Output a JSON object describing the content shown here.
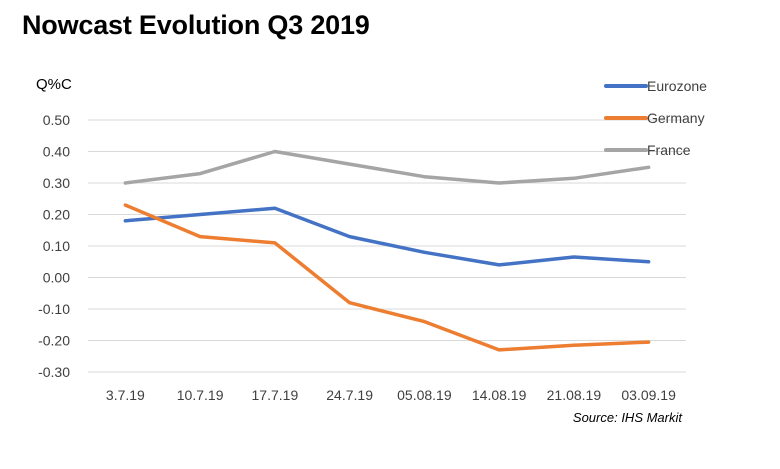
{
  "chart_data": {
    "type": "line",
    "title": "Nowcast Evolution Q3 2019",
    "ylabel": "Q%C",
    "xlabel": "",
    "source": "Source: IHS Markit",
    "categories": [
      "3.7.19",
      "10.7.19",
      "17.7.19",
      "24.7.19",
      "05.08.19",
      "14.08.19",
      "21.08.19",
      "03.09.19"
    ],
    "ylim": [
      -0.3,
      0.5
    ],
    "yticks": [
      -0.3,
      -0.2,
      -0.1,
      0.0,
      0.1,
      0.2,
      0.3,
      0.4,
      0.5
    ],
    "ytick_labels": [
      "-0.30",
      "-0.20",
      "-0.10",
      "0.00",
      "0.10",
      "0.20",
      "0.30",
      "0.40",
      "0.50"
    ],
    "grid": true,
    "legend_position": "top-right",
    "series": [
      {
        "name": "Eurozone",
        "color": "#4472C4",
        "values": [
          0.18,
          0.2,
          0.22,
          0.13,
          0.08,
          0.04,
          0.065,
          0.05
        ]
      },
      {
        "name": "Germany",
        "color": "#ED7D31",
        "values": [
          0.23,
          0.13,
          0.11,
          -0.08,
          -0.14,
          -0.23,
          -0.215,
          -0.205
        ]
      },
      {
        "name": "France",
        "color": "#A5A5A5",
        "values": [
          0.3,
          0.33,
          0.4,
          0.36,
          0.32,
          0.3,
          0.315,
          0.35
        ]
      }
    ]
  }
}
